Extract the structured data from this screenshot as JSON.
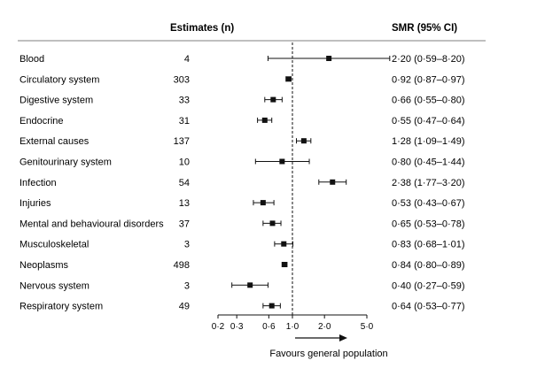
{
  "chart_data": {
    "type": "forest",
    "scale": "log",
    "xlim": [
      0.2,
      5.0
    ],
    "reference_line": 1.0,
    "headers": {
      "count": "Estimates (n)",
      "estimate": "SMR (95% CI)"
    },
    "x_ticks": [
      "0·2",
      "0·3",
      "0·6",
      "1·0",
      "2·0",
      "5·0"
    ],
    "x_tick_values": [
      0.2,
      0.3,
      0.6,
      1.0,
      2.0,
      5.0
    ],
    "xlabel": "Favours general population",
    "rows": [
      {
        "label": "Blood",
        "n": "4",
        "smr": 2.2,
        "lo": 0.59,
        "hi": 8.2,
        "text": "2·20 (0·59–8·20)"
      },
      {
        "label": "Circulatory system",
        "n": "303",
        "smr": 0.92,
        "lo": 0.87,
        "hi": 0.97,
        "text": "0·92 (0·87–0·97)"
      },
      {
        "label": "Digestive system",
        "n": "33",
        "smr": 0.66,
        "lo": 0.55,
        "hi": 0.8,
        "text": "0·66 (0·55–0·80)"
      },
      {
        "label": "Endocrine",
        "n": "31",
        "smr": 0.55,
        "lo": 0.47,
        "hi": 0.64,
        "text": "0·55 (0·47–0·64)"
      },
      {
        "label": "External causes",
        "n": "137",
        "smr": 1.28,
        "lo": 1.09,
        "hi": 1.49,
        "text": "1·28 (1·09–1·49)"
      },
      {
        "label": "Genitourinary system",
        "n": "10",
        "smr": 0.8,
        "lo": 0.45,
        "hi": 1.44,
        "text": "0·80 (0·45–1·44)"
      },
      {
        "label": "Infection",
        "n": "54",
        "smr": 2.38,
        "lo": 1.77,
        "hi": 3.2,
        "text": "2·38 (1·77–3·20)"
      },
      {
        "label": "Injuries",
        "n": "13",
        "smr": 0.53,
        "lo": 0.43,
        "hi": 0.67,
        "text": "0·53 (0·43–0·67)"
      },
      {
        "label": "Mental and behavioural disorders",
        "n": "37",
        "smr": 0.65,
        "lo": 0.53,
        "hi": 0.78,
        "text": "0·65 (0·53–0·78)"
      },
      {
        "label": "Musculoskeletal",
        "n": "3",
        "smr": 0.83,
        "lo": 0.68,
        "hi": 1.01,
        "text": "0·83 (0·68–1·01)"
      },
      {
        "label": "Neoplasms",
        "n": "498",
        "smr": 0.84,
        "lo": 0.8,
        "hi": 0.89,
        "text": "0·84 (0·80–0·89)"
      },
      {
        "label": "Nervous system",
        "n": "3",
        "smr": 0.4,
        "lo": 0.27,
        "hi": 0.59,
        "text": "0·40 (0·27–0·59)"
      },
      {
        "label": "Respiratory system",
        "n": "49",
        "smr": 0.64,
        "lo": 0.53,
        "hi": 0.77,
        "text": "0·64 (0·53–0·77)"
      }
    ]
  }
}
